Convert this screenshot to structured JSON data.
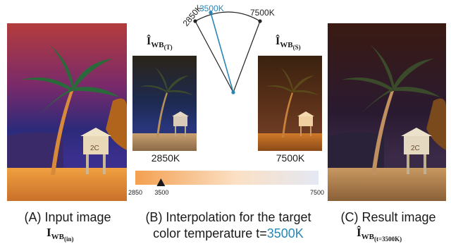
{
  "panels": {
    "a": {
      "caption": "(A) Input image",
      "math_base": "I",
      "math_sub": "WB",
      "math_subsub": "(in)"
    },
    "b": {
      "caption_line1": "(B) Interpolation for the target",
      "caption_line2_prefix": "color temperature t=",
      "caption_line2_value": "3500K"
    },
    "c": {
      "caption": "(C) Result image",
      "math_base": "Î",
      "math_sub": "WB",
      "math_subsub": "(t=3500K)"
    }
  },
  "thumbs": {
    "tungsten": {
      "math_base": "Î",
      "math_sub": "WB",
      "math_subsub": "(T)",
      "label": "2850K"
    },
    "shade": {
      "math_base": "Î",
      "math_sub": "WB",
      "math_subsub": "(S)",
      "label": "7500K"
    }
  },
  "arc": {
    "label_left": "2850K",
    "label_target": "3500K",
    "label_right": "7500K"
  },
  "temp_bar": {
    "min_label": "2850",
    "target_label": "3500",
    "max_label": "7500",
    "min": 2850,
    "max": 7500,
    "target": 3500,
    "colors": [
      "#f4a050",
      "#fbe0c4",
      "#e4e8f4"
    ]
  },
  "colors": {
    "accent": "#2a87b5"
  }
}
